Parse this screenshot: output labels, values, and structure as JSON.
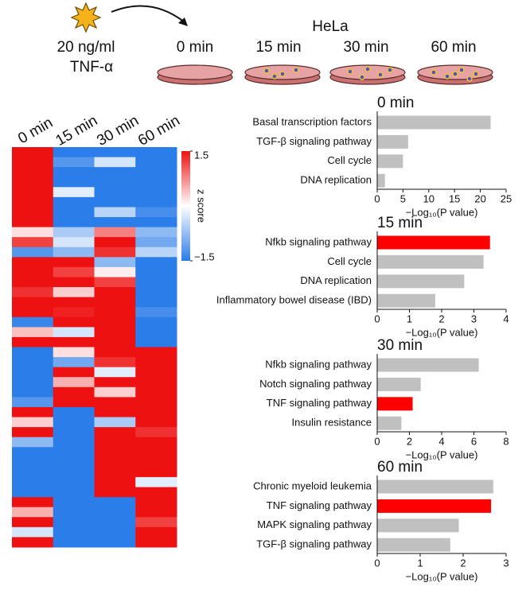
{
  "header": {
    "stimulus": [
      "20 ng/ml",
      "TNF-α"
    ],
    "cell_line": "HeLa",
    "timepoints": [
      "0 min",
      "15 min",
      "30 min",
      "60 min"
    ]
  },
  "chart_data": [
    {
      "type": "heatmap",
      "columns": [
        "0 min",
        "15 min",
        "30 min",
        "60 min"
      ],
      "colorbar_label": "z score",
      "zlim": [
        -1.5,
        1.5
      ],
      "zticks": [
        1.5,
        {
          "value": -1.5,
          "label": "−1.5"
        }
      ],
      "colormap": [
        "#2b7de9",
        "#ffffff",
        "#ee1111"
      ],
      "z": [
        [
          1.5,
          -1.5,
          -1.5,
          -1.5
        ],
        [
          1.5,
          -1.2,
          -0.3,
          -1.5
        ],
        [
          1.5,
          -1.5,
          -1.5,
          -1.5
        ],
        [
          1.5,
          -1.5,
          -1.5,
          -1.5
        ],
        [
          1.5,
          -0.2,
          -1.5,
          -1.5
        ],
        [
          1.5,
          -1.5,
          -1.5,
          -1.5
        ],
        [
          1.5,
          -1.5,
          -0.5,
          -1.3
        ],
        [
          1.5,
          -1.5,
          -1.5,
          -1.5
        ],
        [
          0.2,
          -0.6,
          0.8,
          -0.8
        ],
        [
          1.2,
          -0.3,
          1.5,
          -1.0
        ],
        [
          -1.2,
          -0.8,
          1.3,
          -0.5
        ],
        [
          1.5,
          1.5,
          -0.8,
          -1.5
        ],
        [
          1.5,
          1.2,
          0.1,
          -1.5
        ],
        [
          1.5,
          1.5,
          1.2,
          -1.5
        ],
        [
          1.3,
          0.3,
          1.5,
          -1.5
        ],
        [
          1.5,
          1.5,
          1.5,
          -1.5
        ],
        [
          1.5,
          1.4,
          1.5,
          -1.3
        ],
        [
          -1.4,
          1.5,
          1.5,
          -1.5
        ],
        [
          0.4,
          -0.3,
          1.5,
          -1.5
        ],
        [
          1.5,
          1.5,
          1.5,
          -1.5
        ],
        [
          -1.5,
          0.2,
          1.5,
          1.5
        ],
        [
          -1.5,
          -1.0,
          1.3,
          1.5
        ],
        [
          -1.5,
          1.5,
          -0.2,
          1.5
        ],
        [
          -1.5,
          0.5,
          1.5,
          1.5
        ],
        [
          -1.5,
          1.5,
          0.3,
          1.5
        ],
        [
          -1.2,
          1.5,
          1.5,
          1.5
        ],
        [
          1.5,
          -1.5,
          1.5,
          1.5
        ],
        [
          0.3,
          -1.5,
          -0.6,
          1.5
        ],
        [
          1.5,
          -1.5,
          1.5,
          1.3
        ],
        [
          -0.8,
          -1.5,
          1.5,
          1.5
        ],
        [
          -1.5,
          -1.5,
          1.5,
          1.5
        ],
        [
          -1.5,
          -1.5,
          1.5,
          1.5
        ],
        [
          -1.5,
          -1.5,
          1.5,
          1.5
        ],
        [
          -1.5,
          -1.5,
          1.5,
          -0.2
        ],
        [
          -1.5,
          -1.5,
          1.5,
          1.5
        ],
        [
          1.5,
          -1.5,
          -1.5,
          1.5
        ],
        [
          0.5,
          -1.5,
          -1.5,
          1.5
        ],
        [
          1.5,
          -1.5,
          -1.5,
          1.2
        ],
        [
          -0.3,
          -1.5,
          -1.5,
          1.5
        ],
        [
          1.5,
          -1.5,
          -1.5,
          1.5
        ]
      ]
    },
    {
      "type": "barh",
      "title": "0 min",
      "xlabel": "−Log₁₀(P value)",
      "categories": [
        "Basal transcription factors",
        "TGF-β signaling pathway",
        "Cell cycle",
        "DNA replication"
      ],
      "values": [
        22,
        6,
        5,
        1.5
      ],
      "colors": [
        "#c0c0c0",
        "#c0c0c0",
        "#c0c0c0",
        "#c0c0c0"
      ],
      "xlim": [
        0,
        25
      ],
      "xticks": [
        0,
        5,
        10,
        15,
        20,
        25
      ]
    },
    {
      "type": "barh",
      "title": "15 min",
      "xlabel": "−Log₁₀(P value)",
      "categories": [
        "Nfkb signaling pathway",
        "Cell cycle",
        "DNA replication",
        "Inflammatory bowel disease (IBD)"
      ],
      "values": [
        3.5,
        3.3,
        2.7,
        1.8
      ],
      "colors": [
        "#ff0000",
        "#c0c0c0",
        "#c0c0c0",
        "#c0c0c0"
      ],
      "xlim": [
        0,
        4
      ],
      "xticks": [
        0,
        1,
        2,
        3,
        4
      ]
    },
    {
      "type": "barh",
      "title": "30 min",
      "xlabel": "−Log₁₀(P value)",
      "categories": [
        "Nfkb signaling pathway",
        "Notch signaling pathway",
        "TNF signaling pathway",
        "Insulin resistance"
      ],
      "values": [
        6.3,
        2.7,
        2.2,
        1.5
      ],
      "colors": [
        "#c0c0c0",
        "#c0c0c0",
        "#ff0000",
        "#c0c0c0"
      ],
      "xlim": [
        0,
        8
      ],
      "xticks": [
        0,
        2,
        4,
        6,
        8
      ]
    },
    {
      "type": "barh",
      "title": "60 min",
      "xlabel": "−Log₁₀(P value)",
      "categories": [
        "Chronic myeloid leukemia",
        "TNF signaling pathway",
        "MAPK signaling pathway",
        "TGF-β signaling pathway"
      ],
      "values": [
        2.7,
        2.65,
        1.9,
        1.7
      ],
      "colors": [
        "#c0c0c0",
        "#ff0000",
        "#c0c0c0",
        "#c0c0c0"
      ],
      "xlim": [
        0,
        3
      ],
      "xticks": [
        0,
        1,
        2,
        3
      ]
    }
  ]
}
